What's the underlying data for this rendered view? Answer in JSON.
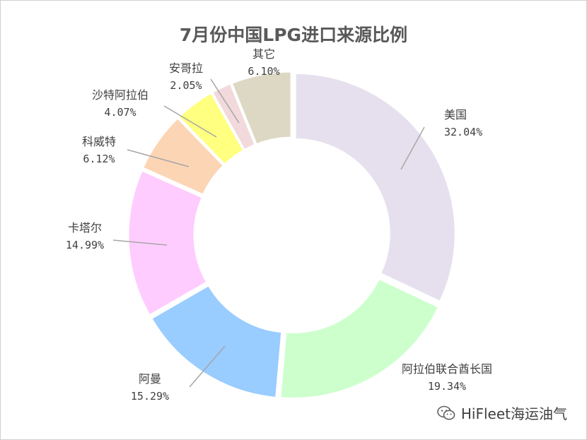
{
  "chart_data": {
    "type": "pie",
    "title": "7月份中国LPG进口来源比例",
    "donut": true,
    "start_angle": "12 o'clock, clockwise",
    "legend": "none",
    "slices": [
      {
        "label": "美国",
        "value": 32.04,
        "value_text": "32.04%",
        "color": "#e6e0ee"
      },
      {
        "label": "阿拉伯联合酋长国",
        "value": 19.34,
        "value_text": "19.34%",
        "color": "#ccffcc"
      },
      {
        "label": "阿曼",
        "value": 15.29,
        "value_text": "15.29%",
        "color": "#99ccff"
      },
      {
        "label": "卡塔尔",
        "value": 14.99,
        "value_text": "14.99%",
        "color": "#ffccff"
      },
      {
        "label": "科威特",
        "value": 6.12,
        "value_text": "6.12%",
        "color": "#fcd5b5"
      },
      {
        "label": "沙特阿拉伯",
        "value": 4.07,
        "value_text": "4.07%",
        "color": "#ffff80"
      },
      {
        "label": "安哥拉",
        "value": 2.05,
        "value_text": "2.05%",
        "color": "#f2d9dc"
      },
      {
        "label": "其它",
        "value": 6.1,
        "value_text": "6.10%",
        "color": "#ddd8c4"
      }
    ]
  },
  "watermark": {
    "text": "HiFleet海运油气",
    "icon": "wechat-icon"
  }
}
